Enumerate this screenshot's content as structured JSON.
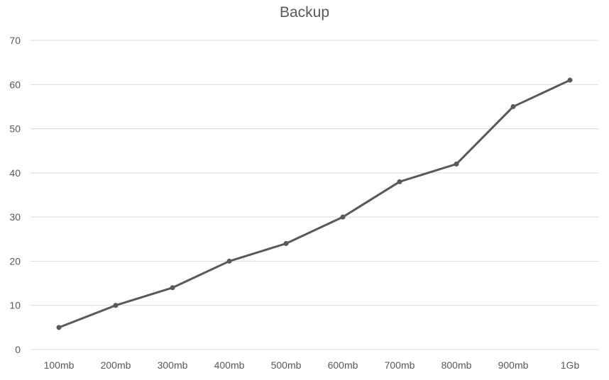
{
  "chart_data": {
    "type": "line",
    "title": "Backup",
    "xlabel": "",
    "ylabel": "",
    "categories": [
      "100mb",
      "200mb",
      "300mb",
      "400mb",
      "500mb",
      "600mb",
      "700mb",
      "800mb",
      "900mb",
      "1Gb"
    ],
    "series": [
      {
        "values": [
          5,
          10,
          14,
          20,
          24,
          30,
          38,
          42,
          55,
          61
        ],
        "color": "#595959"
      }
    ],
    "ylim": [
      0,
      70
    ],
    "yticks": [
      0,
      10,
      20,
      30,
      40,
      50,
      60,
      70
    ],
    "grid": true,
    "legend": "none"
  }
}
